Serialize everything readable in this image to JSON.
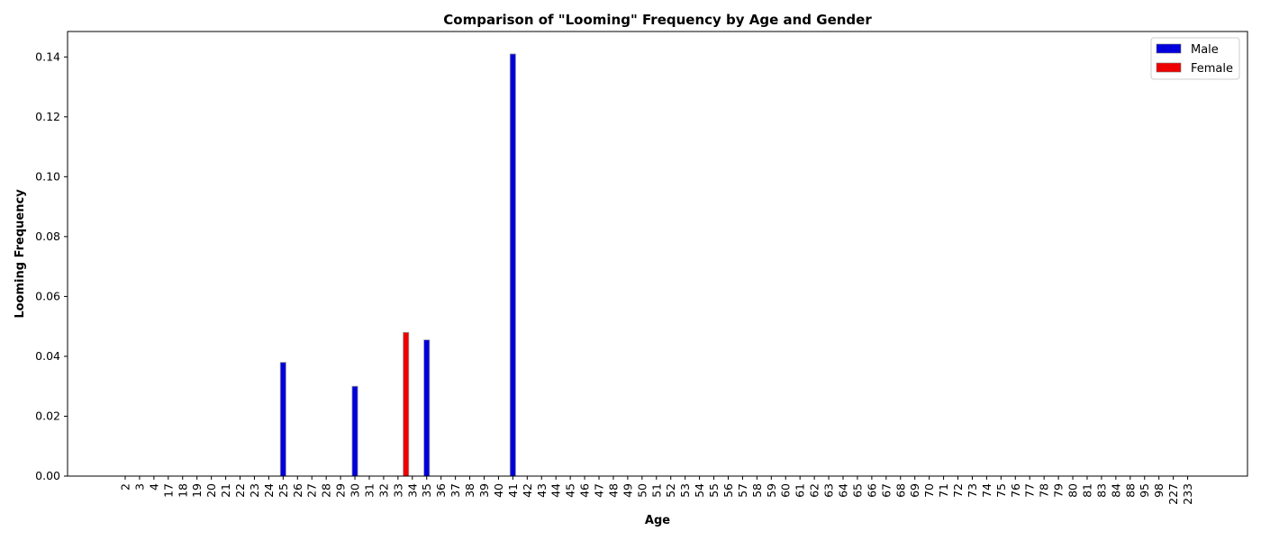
{
  "chart_data": {
    "type": "bar",
    "title": "Comparison of \"Looming\" Frequency by Age and Gender",
    "xlabel": "Age",
    "ylabel": "Looming Frequency",
    "categories": [
      "2",
      "3",
      "4",
      "17",
      "18",
      "19",
      "20",
      "21",
      "22",
      "23",
      "24",
      "25",
      "26",
      "27",
      "28",
      "29",
      "30",
      "31",
      "32",
      "33",
      "34",
      "35",
      "36",
      "37",
      "38",
      "39",
      "40",
      "41",
      "42",
      "43",
      "44",
      "45",
      "46",
      "47",
      "48",
      "49",
      "50",
      "51",
      "52",
      "53",
      "54",
      "55",
      "56",
      "57",
      "58",
      "59",
      "60",
      "61",
      "62",
      "63",
      "64",
      "65",
      "66",
      "67",
      "68",
      "69",
      "70",
      "71",
      "72",
      "73",
      "74",
      "75",
      "76",
      "77",
      "78",
      "79",
      "80",
      "81",
      "83",
      "84",
      "88",
      "95",
      "98",
      "227",
      "233"
    ],
    "series": [
      {
        "name": "Male",
        "color": "#0000dd",
        "values": [
          0,
          0,
          0,
          0,
          0,
          0,
          0,
          0,
          0,
          0,
          0,
          0.038,
          0,
          0,
          0,
          0,
          0.03,
          0,
          0,
          0,
          0,
          0.0455,
          0,
          0,
          0,
          0,
          0,
          0.141,
          0,
          0,
          0,
          0,
          0,
          0,
          0,
          0,
          0,
          0,
          0,
          0,
          0,
          0,
          0,
          0,
          0,
          0,
          0,
          0,
          0,
          0,
          0,
          0,
          0,
          0,
          0,
          0,
          0,
          0,
          0,
          0,
          0,
          0,
          0,
          0,
          0,
          0,
          0,
          0,
          0,
          0,
          0,
          0,
          0,
          0,
          0
        ]
      },
      {
        "name": "Female",
        "color": "#ee0000",
        "values": [
          0,
          0,
          0,
          0,
          0,
          0,
          0,
          0,
          0,
          0,
          0,
          0,
          0,
          0,
          0,
          0,
          0,
          0,
          0,
          0,
          0.048,
          0,
          0,
          0,
          0,
          0,
          0,
          0,
          0,
          0,
          0,
          0,
          0,
          0,
          0,
          0,
          0,
          0,
          0,
          0,
          0,
          0,
          0,
          0,
          0,
          0,
          0,
          0,
          0,
          0,
          0,
          0,
          0,
          0,
          0,
          0,
          0,
          0,
          0,
          0,
          0,
          0,
          0,
          0,
          0,
          0,
          0,
          0,
          0,
          0,
          0,
          0,
          0,
          0,
          0
        ]
      }
    ],
    "ylim": [
      0,
      0.1485
    ],
    "yticks": [
      "0.00",
      "0.02",
      "0.04",
      "0.06",
      "0.08",
      "0.10",
      "0.12",
      "0.14"
    ],
    "grid": false,
    "legend_position": "top-right"
  }
}
